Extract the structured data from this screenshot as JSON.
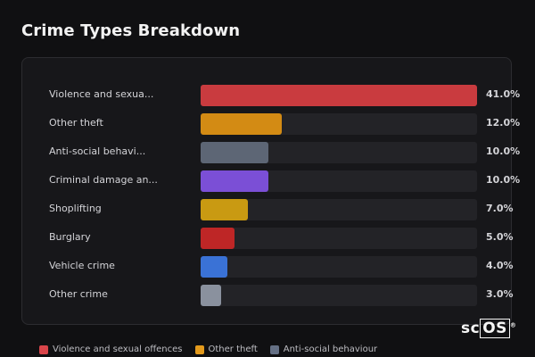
{
  "title": "Crime Types Breakdown",
  "chart_data": {
    "type": "bar",
    "orientation": "horizontal",
    "categories": [
      "Violence and sexua...",
      "Other theft",
      "Anti-social behavi...",
      "Criminal damage an...",
      "Shoplifting",
      "Burglary",
      "Vehicle crime",
      "Other crime"
    ],
    "values": [
      41.0,
      12.0,
      10.0,
      10.0,
      7.0,
      5.0,
      4.0,
      3.0
    ],
    "value_labels": [
      "41.0%",
      "12.0%",
      "10.0%",
      "10.0%",
      "7.0%",
      "5.0%",
      "4.0%",
      "3.0%"
    ],
    "colors": [
      "#c93b3f",
      "#d38b14",
      "#5d6675",
      "#7b4fd6",
      "#c99a12",
      "#be2626",
      "#3a72d6",
      "#8a919e"
    ],
    "xlim": [
      0,
      41
    ],
    "grid": false
  },
  "legend": {
    "items": [
      {
        "label": "Violence and sexual offences",
        "color": "#d9454a"
      },
      {
        "label": "Other theft",
        "color": "#e39a1c"
      },
      {
        "label": "Anti-social behaviour",
        "color": "#657085"
      }
    ]
  },
  "logo": {
    "prefix": "sc",
    "boxed": "OS",
    "mark": "®"
  }
}
